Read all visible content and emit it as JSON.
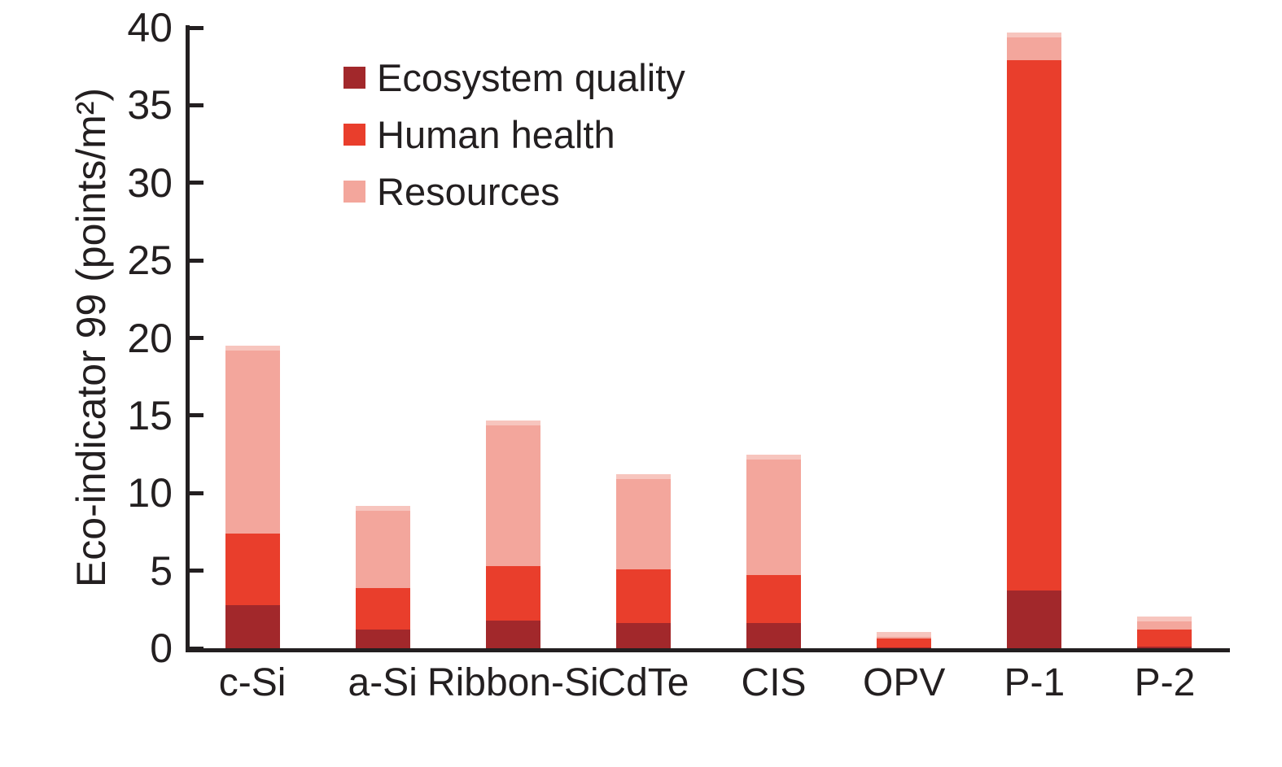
{
  "chart_data": {
    "type": "bar",
    "subtype": "stacked-vertical",
    "title": "",
    "xlabel": "",
    "ylabel": "Eco-indicator 99 (points/m²)",
    "ylim": [
      0,
      40
    ],
    "ytick_step": 5,
    "ytick_labels": [
      "0",
      "5",
      "10",
      "15",
      "20",
      "25",
      "30",
      "35",
      "40"
    ],
    "grid": false,
    "legend_position": "top-left-inside",
    "categories": [
      "c-Si",
      "a-Si",
      "Ribbon-Si",
      "CdTe",
      "CIS",
      "OPV",
      "P-1",
      "P-2"
    ],
    "series": [
      {
        "name": "Ecosystem quality",
        "color": "#A2282B",
        "values": [
          2.8,
          1.2,
          1.8,
          1.6,
          1.6,
          0.05,
          3.7,
          0.1
        ]
      },
      {
        "name": "Human health",
        "color": "#E93E2C",
        "values": [
          4.6,
          2.7,
          3.5,
          3.5,
          3.1,
          0.6,
          34.2,
          1.1
        ]
      },
      {
        "name": "Resources",
        "color": "#F3A69C",
        "values": [
          12.1,
          5.3,
          9.4,
          6.1,
          7.8,
          0.4,
          1.8,
          0.85
        ]
      }
    ],
    "totals": [
      19.5,
      9.2,
      14.7,
      11.2,
      12.5,
      1.05,
      39.7,
      2.05
    ],
    "colors": {
      "axis": "#231f20",
      "background": "#ffffff"
    }
  }
}
